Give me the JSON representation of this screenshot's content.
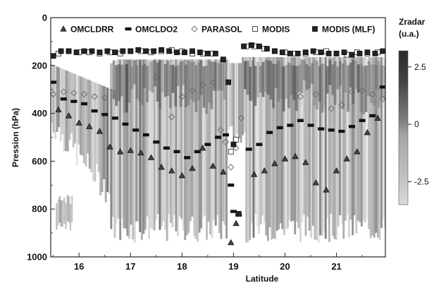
{
  "chart_data": {
    "type": "heatmap",
    "title": "",
    "xlabel": "Latitude",
    "ylabel": "Pression (hPa)",
    "xlim": [
      15.45,
      21.95
    ],
    "ylim": [
      1000,
      0
    ],
    "x_ticks": [
      16,
      17,
      18,
      19,
      20,
      21
    ],
    "y_ticks": [
      0,
      200,
      400,
      600,
      800,
      1000
    ],
    "colorbar": {
      "title": "Zradar",
      "unit": "(u.a.)",
      "ticks": [
        {
          "value": 2.5,
          "label": "2.5"
        },
        {
          "value": 0,
          "label": "0"
        },
        {
          "value": -2.5,
          "label": "-2.5"
        }
      ],
      "range": [
        -3.5,
        3.2
      ],
      "color_low": "#d9d9d9",
      "color_high": "#2b2b2b"
    },
    "legend_position": "top",
    "legend": [
      {
        "name": "OMCLDRR",
        "marker": "triangle-open"
      },
      {
        "name": "OMCLDO2",
        "marker": "star"
      },
      {
        "name": "PARASOL",
        "marker": "diamond-open"
      },
      {
        "name": "MODIS",
        "marker": "square-open"
      },
      {
        "name": "MODIS (MLF)",
        "marker": "square-filled"
      }
    ],
    "series": [
      {
        "name": "OMCLDRR",
        "x": [
          15.6,
          15.8,
          16.0,
          16.2,
          16.4,
          16.6,
          16.8,
          17.0,
          17.2,
          17.4,
          17.6,
          17.8,
          18.0,
          18.2,
          18.4,
          18.6,
          18.8,
          18.95,
          19.05,
          19.4,
          19.6,
          19.8,
          20.0,
          20.2,
          20.4,
          20.6,
          20.8,
          21.0,
          21.2,
          21.4,
          21.6,
          21.8
        ],
        "y": [
          385,
          410,
          440,
          455,
          475,
          540,
          560,
          555,
          565,
          585,
          625,
          640,
          660,
          630,
          545,
          620,
          645,
          940,
          860,
          655,
          640,
          610,
          590,
          580,
          605,
          690,
          720,
          640,
          590,
          560,
          480,
          420
        ]
      },
      {
        "name": "OMCLDO2",
        "x": [
          15.5,
          15.7,
          15.9,
          16.1,
          16.3,
          16.5,
          16.7,
          16.9,
          17.1,
          17.3,
          17.5,
          17.7,
          17.9,
          18.1,
          18.3,
          18.5,
          18.7,
          18.85,
          18.95,
          19.0,
          19.1,
          19.3,
          19.5,
          19.7,
          19.9,
          20.1,
          20.3,
          20.5,
          20.7,
          20.9,
          21.1,
          21.3,
          21.5,
          21.7,
          21.9
        ],
        "y": [
          270,
          340,
          350,
          360,
          390,
          405,
          420,
          445,
          470,
          490,
          520,
          545,
          560,
          585,
          560,
          530,
          500,
          490,
          700,
          810,
          825,
          550,
          530,
          480,
          460,
          450,
          430,
          450,
          465,
          470,
          475,
          455,
          430,
          410,
          290
        ]
      },
      {
        "name": "PARASOL",
        "x": [
          15.5,
          15.7,
          15.9,
          16.1,
          16.3,
          16.5,
          17.5,
          17.8,
          18.0,
          18.2,
          18.4,
          18.6,
          18.75,
          18.85,
          18.95,
          19.05,
          19.15,
          20.3,
          20.6,
          20.9,
          21.1,
          21.3,
          21.5,
          21.7,
          21.9
        ],
        "y": [
          320,
          310,
          315,
          320,
          330,
          335,
          250,
          415,
          330,
          305,
          280,
          270,
          470,
          520,
          625,
          545,
          420,
          330,
          320,
          380,
          365,
          310,
          305,
          320,
          340
        ]
      },
      {
        "name": "MODIS",
        "x": [
          15.6,
          15.8,
          16.0,
          16.2,
          16.4,
          16.6,
          16.8,
          17.0,
          17.2,
          17.4,
          17.6,
          17.8,
          18.0,
          18.2,
          18.4,
          18.6,
          18.8,
          18.95,
          19.05,
          19.25,
          19.4,
          19.6,
          19.8,
          20.0,
          20.2,
          20.4,
          20.6,
          20.8,
          21.0,
          21.2,
          21.4,
          21.6,
          21.8
        ],
        "y": [
          150,
          140,
          145,
          145,
          150,
          145,
          150,
          140,
          140,
          145,
          140,
          135,
          140,
          150,
          150,
          150,
          175,
          560,
          510,
          120,
          120,
          130,
          140,
          145,
          150,
          150,
          145,
          140,
          150,
          155,
          145,
          150,
          145
        ]
      },
      {
        "name": "MODIS (MLF)",
        "x": [
          15.5,
          15.65,
          15.8,
          15.95,
          16.1,
          16.25,
          16.4,
          16.55,
          16.7,
          16.85,
          17.0,
          17.15,
          17.3,
          17.45,
          17.6,
          17.75,
          17.9,
          18.05,
          18.2,
          18.35,
          18.5,
          18.65,
          18.8,
          18.9,
          19.0,
          19.1,
          19.2,
          19.35,
          19.5,
          19.65,
          19.8,
          19.95,
          20.1,
          20.25,
          20.4,
          20.55,
          20.7,
          20.85,
          21.0,
          21.15,
          21.3,
          21.45,
          21.6,
          21.75,
          21.9
        ],
        "y": [
          160,
          140,
          140,
          145,
          140,
          140,
          145,
          140,
          145,
          140,
          140,
          135,
          140,
          140,
          135,
          140,
          145,
          145,
          140,
          145,
          150,
          150,
          175,
          270,
          530,
          820,
          120,
          115,
          120,
          130,
          140,
          145,
          150,
          150,
          145,
          140,
          145,
          150,
          150,
          145,
          155,
          150,
          145,
          150,
          140
        ]
      }
    ]
  }
}
